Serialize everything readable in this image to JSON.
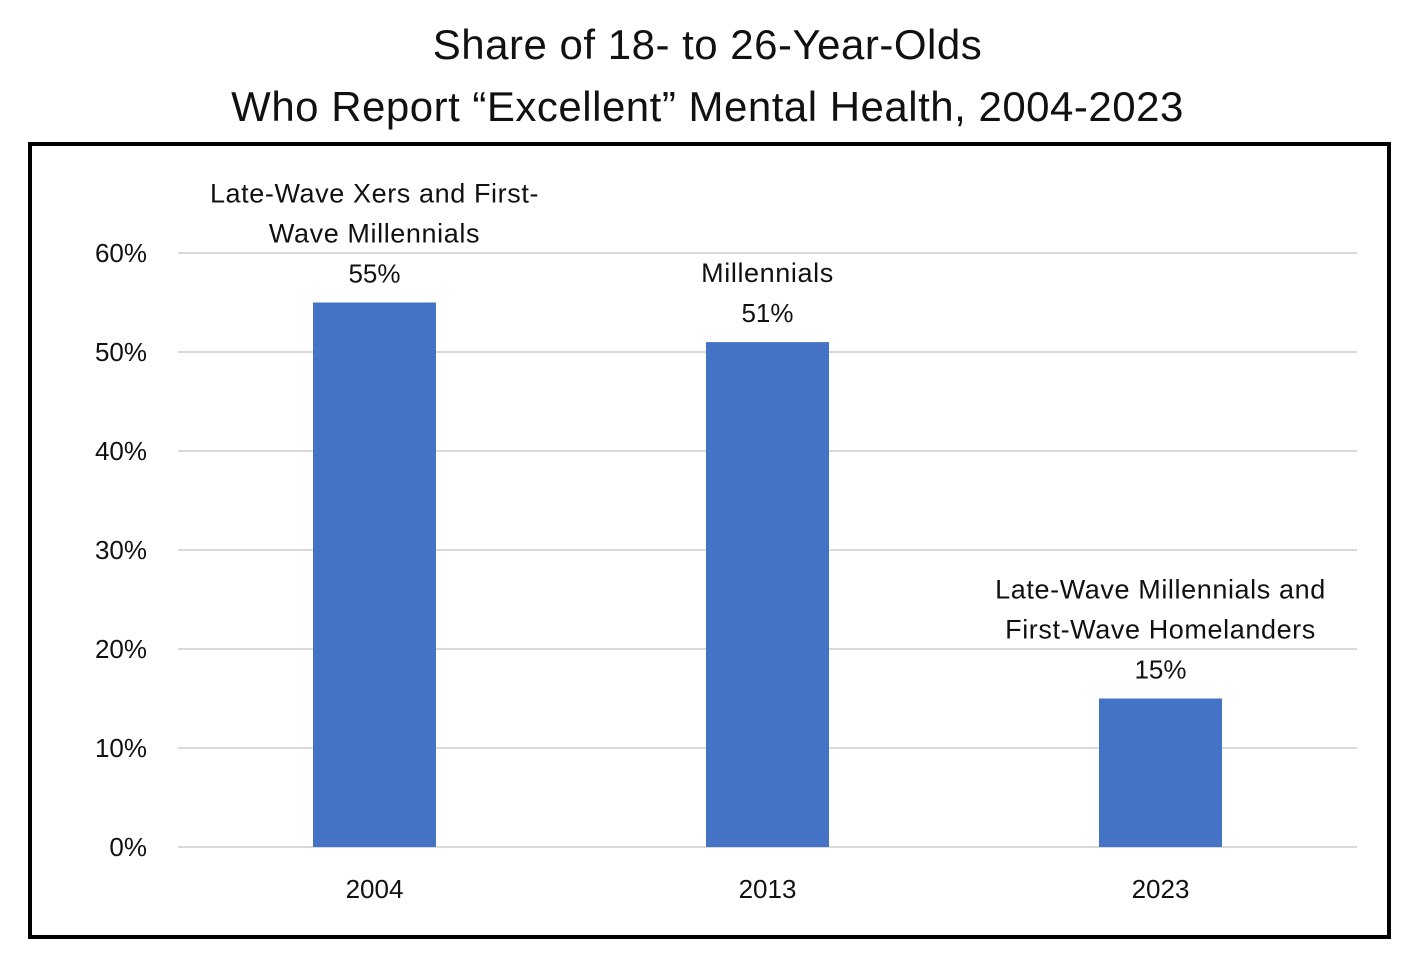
{
  "chart_data": {
    "type": "bar",
    "title_lines": [
      "Share of 18- to 26-Year-Olds",
      "Who Report “Excellent” Mental Health, 2004-2023"
    ],
    "categories": [
      "2004",
      "2013",
      "2023"
    ],
    "values": [
      55,
      51,
      15
    ],
    "value_labels": [
      "55%",
      "51%",
      "15%"
    ],
    "annotations": [
      [
        "Late-Wave Xers and First-",
        "Wave Millennials"
      ],
      [
        "Millennials"
      ],
      [
        "Late-Wave Millennials and",
        "First-Wave Homelanders"
      ]
    ],
    "y_ticks": [
      0,
      10,
      20,
      30,
      40,
      50,
      60
    ],
    "y_tick_labels": [
      "0%",
      "10%",
      "20%",
      "30%",
      "40%",
      "50%",
      "60%"
    ],
    "ylim": [
      0,
      60
    ],
    "xlabel": "",
    "ylabel": "",
    "grid": true,
    "legend": "none",
    "bar_color": "#4472C4",
    "gridline_color": "#D9D9D9"
  }
}
